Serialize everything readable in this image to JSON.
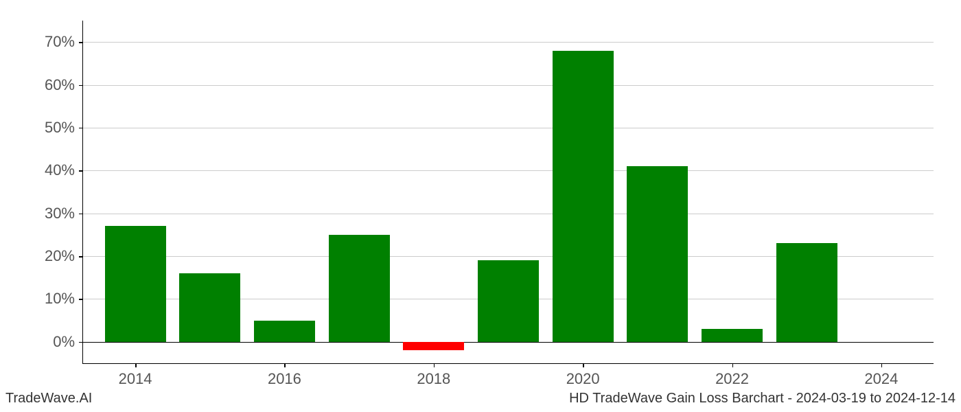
{
  "chart": {
    "type": "bar",
    "background_color": "#ffffff",
    "grid_color": "#cccccc",
    "axis_color": "#000000",
    "tick_label_color": "#555555",
    "tick_label_fontsize": 22,
    "positive_color": "#008000",
    "negative_color": "#ff0000",
    "bar_width_ratio": 0.82,
    "years": [
      2014,
      2015,
      2016,
      2017,
      2018,
      2019,
      2020,
      2021,
      2022,
      2023
    ],
    "values": [
      27,
      16,
      5,
      25,
      -2,
      19,
      68,
      41,
      3,
      23
    ],
    "y_axis": {
      "min": -5,
      "max": 75,
      "ticks": [
        0,
        10,
        20,
        30,
        40,
        50,
        60,
        70
      ],
      "tick_labels": [
        "0%",
        "10%",
        "20%",
        "30%",
        "40%",
        "50%",
        "60%",
        "70%"
      ]
    },
    "x_axis": {
      "ticks": [
        2014,
        2016,
        2018,
        2020,
        2022,
        2024
      ],
      "tick_labels": [
        "2014",
        "2016",
        "2018",
        "2020",
        "2022",
        "2024"
      ],
      "min": 2013.3,
      "max": 2024.7
    }
  },
  "footer": {
    "left": "TradeWave.AI",
    "right": "HD TradeWave Gain Loss Barchart - 2024-03-19 to 2024-12-14"
  }
}
